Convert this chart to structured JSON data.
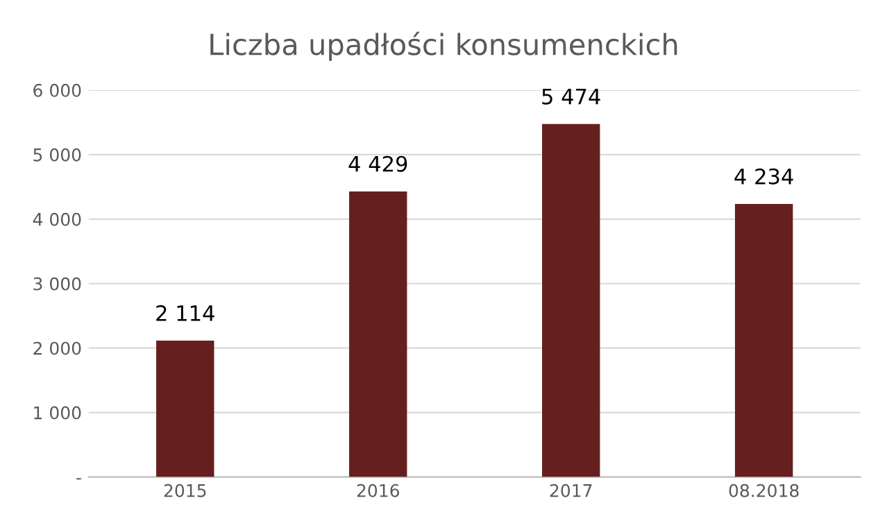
{
  "chart_data": {
    "type": "bar",
    "title": "Liczba upadłości konsumenckich",
    "categories": [
      "2015",
      "2016",
      "2017",
      "08.2018"
    ],
    "values": [
      2114,
      4429,
      5474,
      4234
    ],
    "value_labels": [
      "2 114",
      "4 429",
      "5 474",
      "4 234"
    ],
    "color": "#661f1f",
    "ylim": [
      0,
      6000
    ],
    "yticks": [
      {
        "value": 0,
        "label": "-"
      },
      {
        "value": 1000,
        "label": "1 000"
      },
      {
        "value": 2000,
        "label": "2 000"
      },
      {
        "value": 3000,
        "label": "3 000"
      },
      {
        "value": 4000,
        "label": "4 000"
      },
      {
        "value": 5000,
        "label": "5 000"
      },
      {
        "value": 6000,
        "label": "6 000"
      }
    ],
    "grid": "y"
  }
}
